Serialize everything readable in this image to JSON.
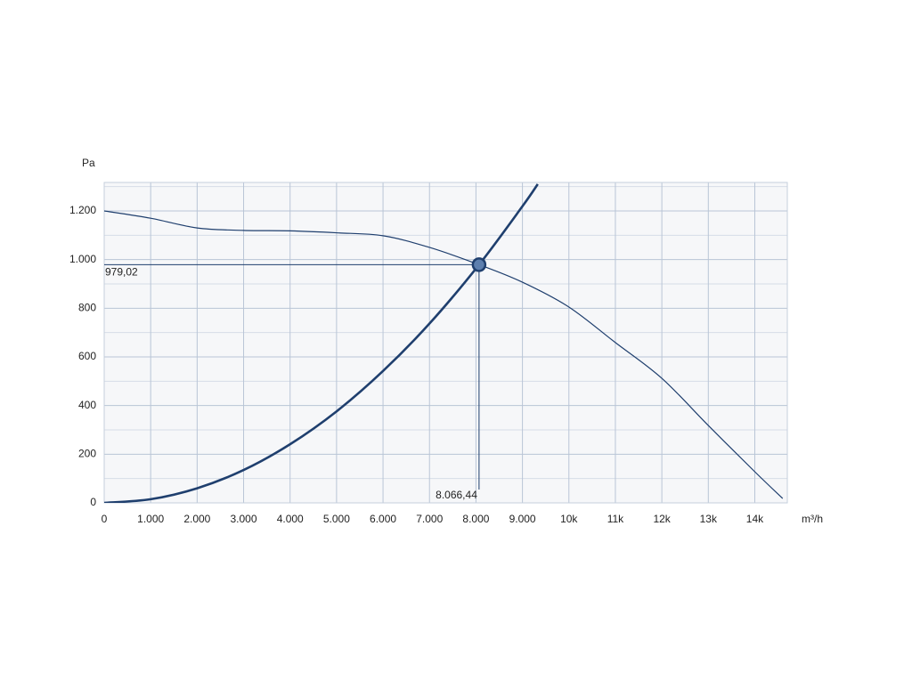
{
  "chart_data": {
    "type": "line",
    "y_axis_label": "Pa",
    "x_axis_label": "m³/h",
    "xlim": [
      0,
      14700
    ],
    "ylim": [
      0,
      1317
    ],
    "xticks": [
      0,
      {
        "value": 1000,
        "label": "1.000"
      },
      {
        "value": 2000,
        "label": "2.000"
      },
      {
        "value": 3000,
        "label": "3.000"
      },
      {
        "value": 4000,
        "label": "4.000"
      },
      {
        "value": 5000,
        "label": "5.000"
      },
      {
        "value": 6000,
        "label": "6.000"
      },
      {
        "value": 7000,
        "label": "7.000"
      },
      {
        "value": 8000,
        "label": "8.000"
      },
      {
        "value": 9000,
        "label": "9.000"
      },
      {
        "value": 10000,
        "label": "10k"
      },
      {
        "value": 11000,
        "label": "11k"
      },
      {
        "value": 12000,
        "label": "12k"
      },
      {
        "value": 13000,
        "label": "13k"
      },
      {
        "value": 14000,
        "label": "14k"
      }
    ],
    "yticks": [
      0,
      200,
      400,
      600,
      800,
      {
        "value": 1000,
        "label": "1.000"
      },
      {
        "value": 1200,
        "label": "1.200"
      }
    ],
    "y_minor_ticks": [
      100,
      300,
      500,
      700,
      900,
      1100,
      1300
    ],
    "grid": true,
    "series": [
      {
        "color": "#1f3f6e",
        "width": 1.2,
        "x": [
          0,
          1000,
          2000,
          3000,
          4000,
          5000,
          6000,
          7000,
          8066.44,
          9000,
          10000,
          11000,
          12000,
          13000,
          14000,
          14600
        ],
        "values": [
          1200,
          1170,
          1130,
          1120,
          1118,
          1110,
          1098,
          1050,
          979.02,
          907,
          805,
          659,
          512,
          318,
          128,
          18
        ]
      },
      {
        "color": "#1f3f6e",
        "width": 2.6,
        "x": [
          0,
          1000,
          2000,
          3000,
          4000,
          5000,
          6000,
          7000,
          8066.44,
          9000,
          9330
        ],
        "values": [
          0,
          15,
          60,
          135,
          241,
          376,
          542,
          737,
          979.02,
          1219,
          1310
        ]
      }
    ],
    "operating_point": {
      "x": 8066.44,
      "y": 979.02,
      "x_label": "8.066,44",
      "y_label": "979,02",
      "color": "#1f3f6e"
    }
  }
}
